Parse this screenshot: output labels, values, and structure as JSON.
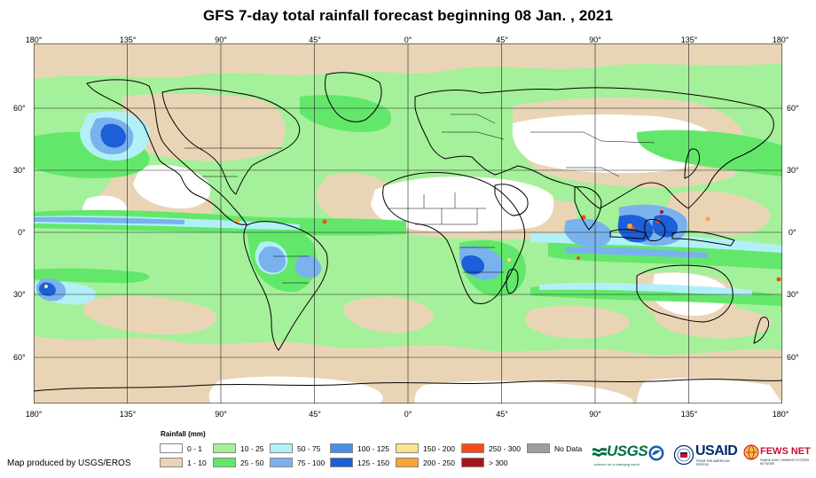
{
  "title": "GFS 7-day total rainfall forecast beginning 08 Jan. , 2021",
  "axes": {
    "lon_labels": [
      "180°",
      "135°",
      "90°",
      "45°",
      "0°",
      "45°",
      "90°",
      "135°",
      "180°"
    ],
    "lat_labels": [
      "60°",
      "30°",
      "0°",
      "30°",
      "60°"
    ]
  },
  "legend": {
    "title": "Rainfall (mm)",
    "items": [
      {
        "label": "0 - 1",
        "color": "#ffffff"
      },
      {
        "label": "1 - 10",
        "color": "#e9d5b6"
      },
      {
        "label": "10 - 25",
        "color": "#a5f09a"
      },
      {
        "label": "25 - 50",
        "color": "#63e76b"
      },
      {
        "label": "50 - 75",
        "color": "#b2f0f8"
      },
      {
        "label": "75 - 100",
        "color": "#7ab2ee"
      },
      {
        "label": "100 - 125",
        "color": "#4a8fe6"
      },
      {
        "label": "125 - 150",
        "color": "#1c5fd8"
      },
      {
        "label": "150 - 200",
        "color": "#fde38c"
      },
      {
        "label": "200 - 250",
        "color": "#fba431"
      },
      {
        "label": "250 - 300",
        "color": "#f74a16"
      },
      {
        "label": "> 300",
        "color": "#a5161c"
      },
      {
        "label": "No Data",
        "color": "#9e9e9e"
      }
    ]
  },
  "credit": "Map produced by USGS/EROS",
  "logos": {
    "usgs": "USGS",
    "usgs_tagline": "science for a changing world",
    "usaid": "USAID",
    "usaid_tagline": "FROM THE AMERICAN PEOPLE",
    "fews": "FEWS NET",
    "fews_tagline": "FAMINE EARLY WARNING SYSTEMS NETWORK"
  }
}
